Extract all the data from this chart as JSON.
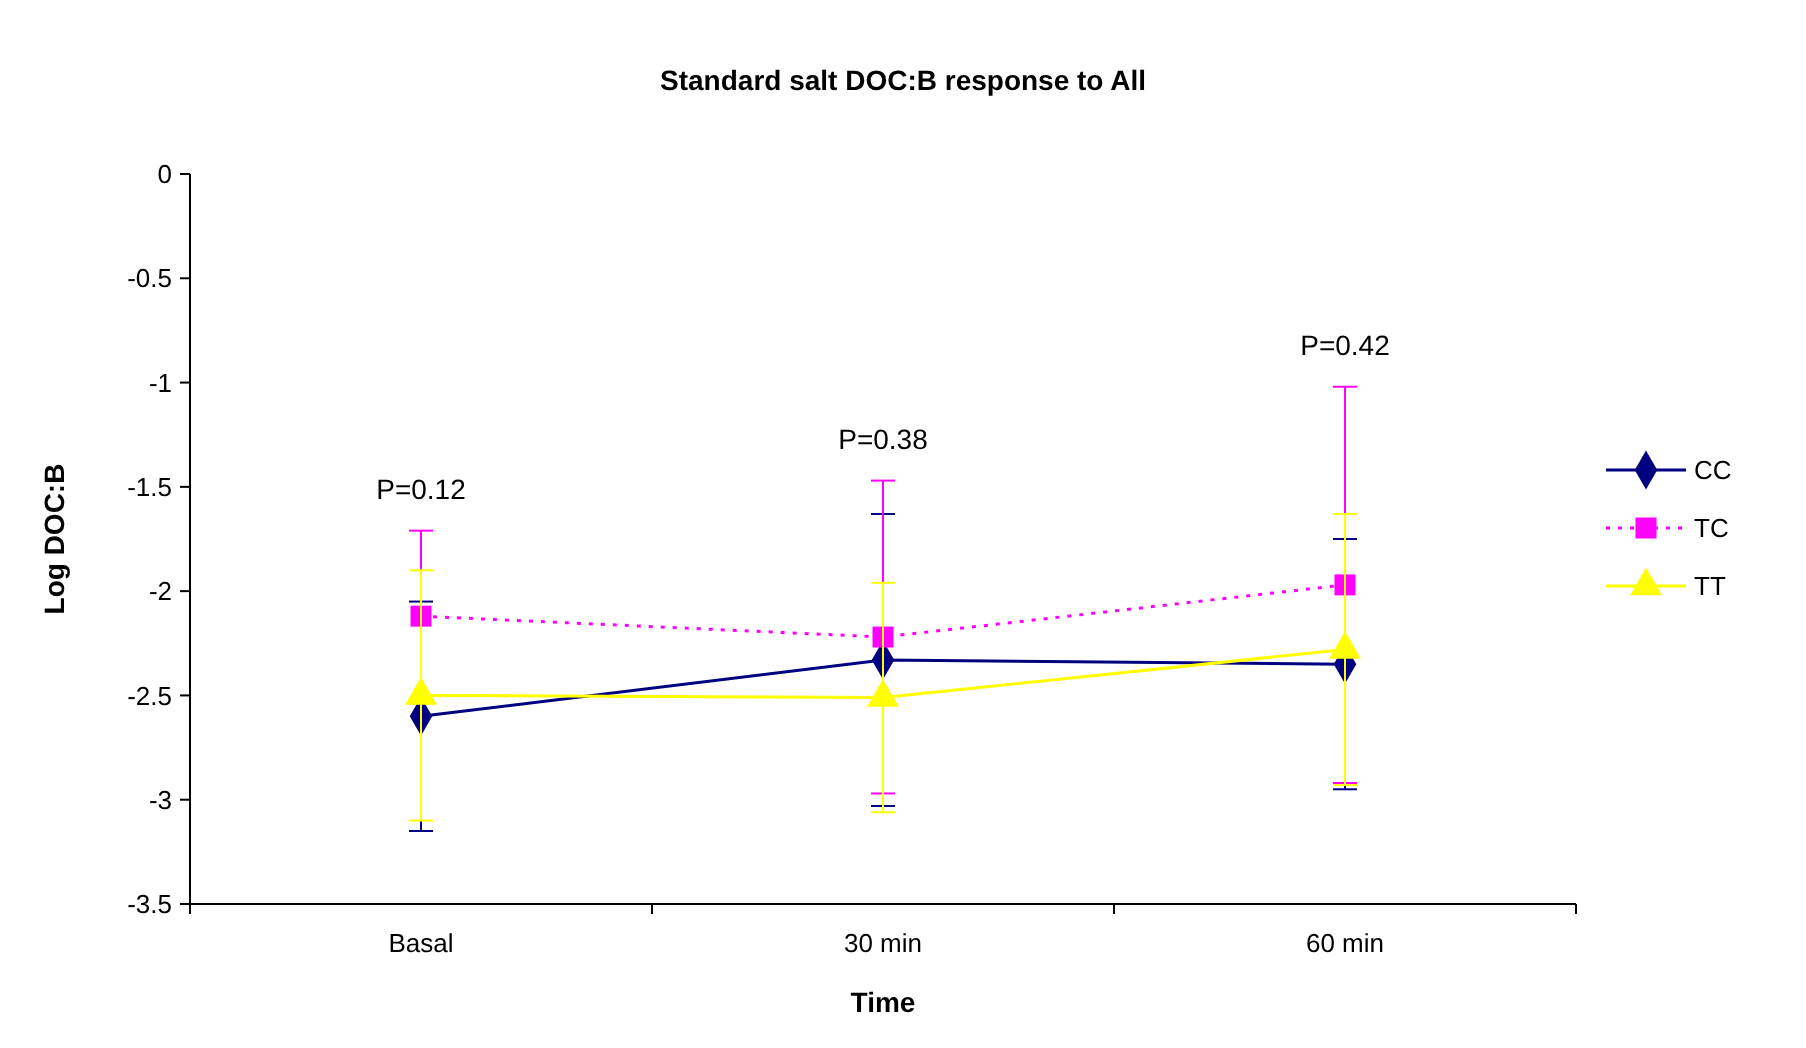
{
  "chart_data": {
    "type": "line",
    "title": "Standard salt DOC:B response to All",
    "xlabel": "Time",
    "ylabel": "Log DOC:B",
    "categories": [
      "Basal",
      "30 min",
      "60 min"
    ],
    "series": [
      {
        "name": "CC",
        "color": "#000080",
        "values": [
          -2.6,
          -2.33,
          -2.35
        ],
        "errors": [
          0.55,
          0.7,
          0.6
        ],
        "marker": "diamond",
        "line_style": "solid"
      },
      {
        "name": "TC",
        "color": "#ff00ff",
        "values": [
          -2.12,
          -2.22,
          -1.97
        ],
        "errors": [
          0.41,
          0.75,
          0.95
        ],
        "marker": "square",
        "line_style": "dotted"
      },
      {
        "name": "TT",
        "color": "#ffff00",
        "values": [
          -2.5,
          -2.51,
          -2.28
        ],
        "errors": [
          0.6,
          0.55,
          0.65
        ],
        "marker": "triangle",
        "line_style": "solid"
      }
    ],
    "ylim": [
      -3.5,
      0
    ],
    "yticks": [
      0,
      -0.5,
      -1,
      -1.5,
      -2,
      -2.5,
      -3,
      -3.5
    ],
    "grid": false,
    "legend": "right",
    "annotations": [
      "P=0.12",
      "P=0.38",
      "P=0.42"
    ]
  }
}
